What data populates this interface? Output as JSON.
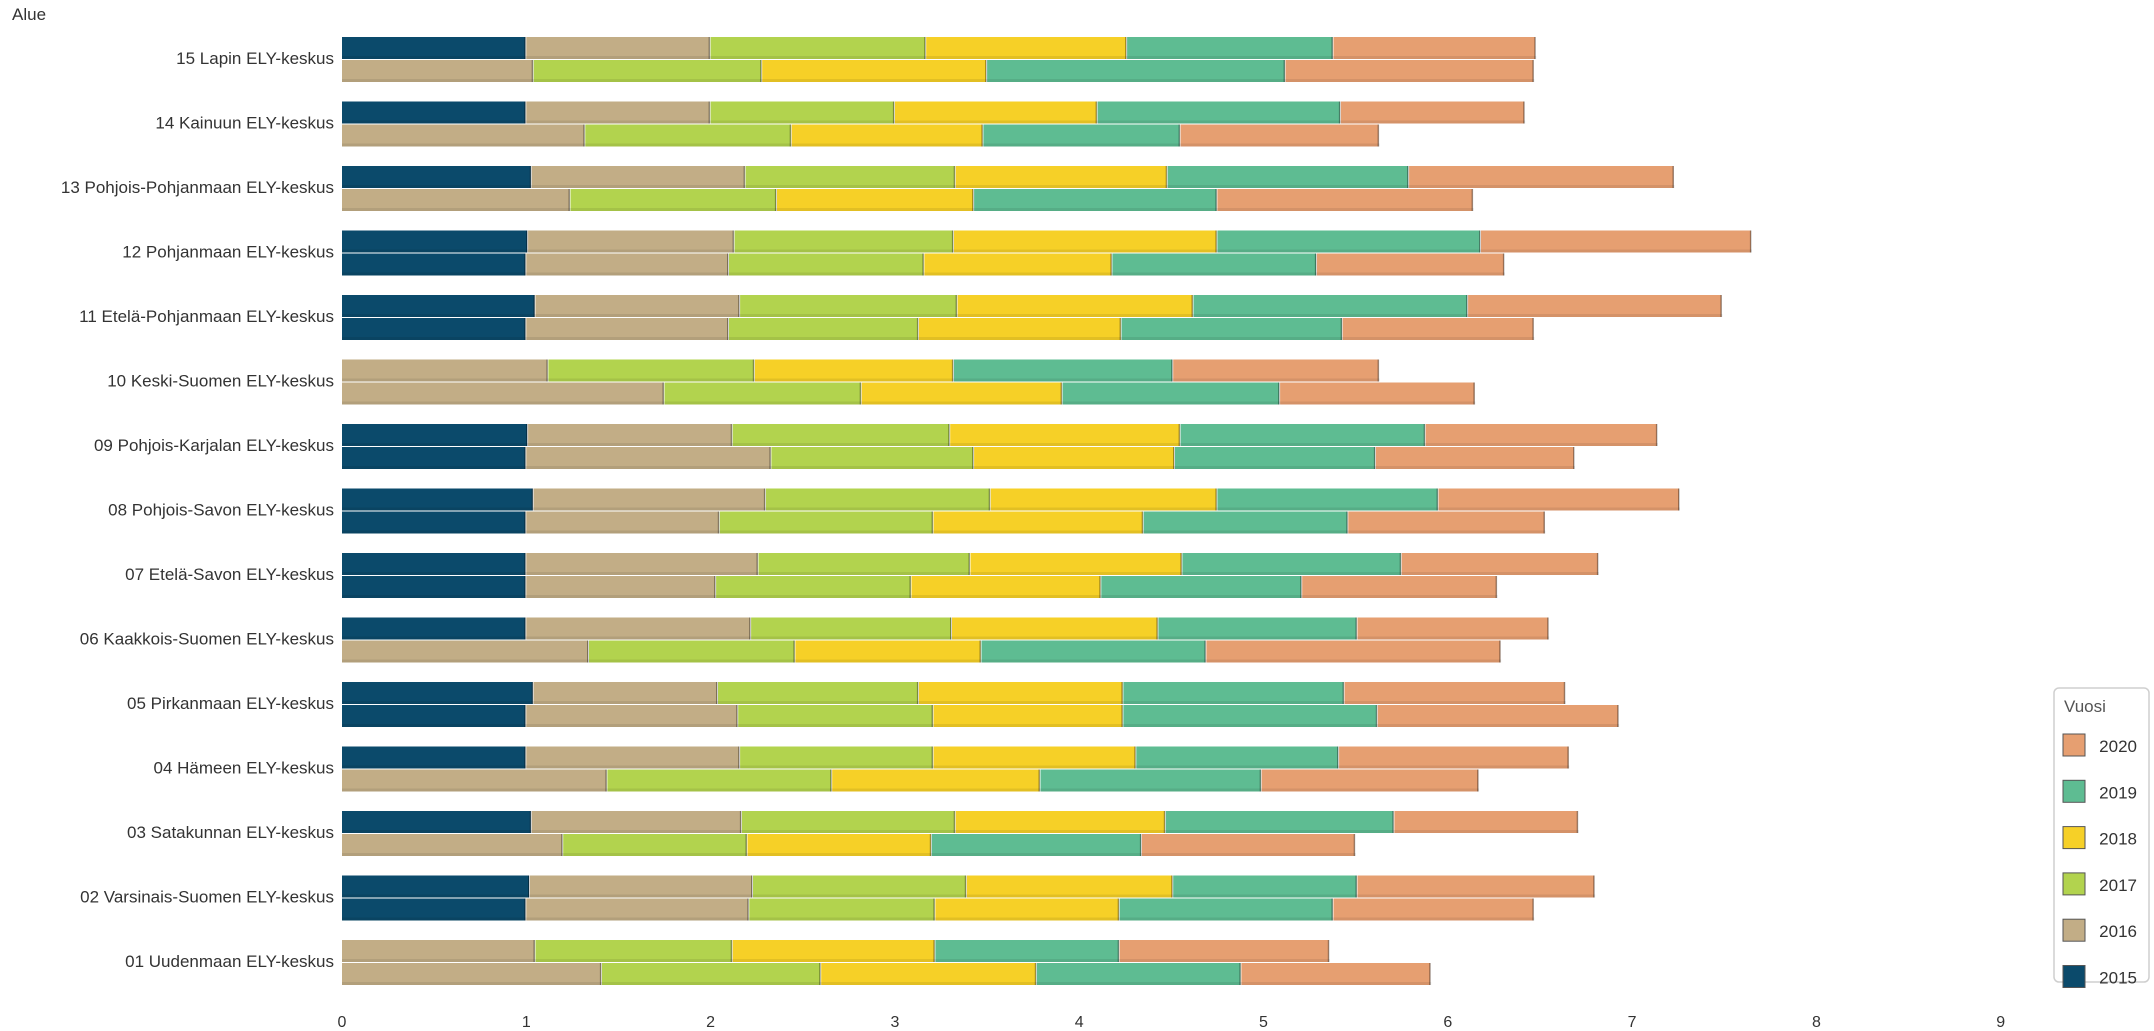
{
  "chart_data": {
    "type": "bar",
    "orientation": "horizontal",
    "stacked": true,
    "y_title": "Alue",
    "categories": [
      "15 Lapin ELY-keskus",
      "14 Kainuun ELY-keskus",
      "13 Pohjois-Pohjanmaan ELY-keskus",
      "12 Pohjanmaan ELY-keskus",
      "11 Etelä-Pohjanmaan ELY-keskus",
      "10 Keski-Suomen ELY-keskus",
      "09 Pohjois-Karjalan ELY-keskus",
      "08 Pohjois-Savon ELY-keskus",
      "07 Etelä-Savon ELY-keskus",
      "06 Kaakkois-Suomen ELY-keskus",
      "05 Pirkanmaan ELY-keskus",
      "04 Hämeen ELY-keskus",
      "03 Satakunnan ELY-keskus",
      "02 Varsinais-Suomen ELY-keskus",
      "01 Uudenmaan ELY-keskus"
    ],
    "bars": [
      [
        [
          1.0,
          1.0,
          1.17,
          1.09,
          1.12,
          1.1
        ],
        [
          0,
          1.04,
          1.24,
          1.22,
          1.62,
          1.35
        ]
      ],
      [
        [
          1.0,
          1.0,
          1.0,
          1.1,
          1.32,
          1.0
        ],
        [
          0,
          1.32,
          1.12,
          1.04,
          1.07,
          1.08
        ]
      ],
      [
        [
          1.03,
          1.16,
          1.14,
          1.15,
          1.31,
          1.44
        ],
        [
          0,
          1.24,
          1.12,
          1.07,
          1.32,
          1.39
        ]
      ],
      [
        [
          1.01,
          1.12,
          1.19,
          1.43,
          1.43,
          1.47
        ],
        [
          1.0,
          1.1,
          1.06,
          1.02,
          1.11,
          1.02
        ]
      ],
      [
        [
          1.05,
          1.11,
          1.18,
          1.28,
          1.49,
          1.38
        ],
        [
          1.0,
          1.1,
          1.03,
          1.1,
          1.2,
          1.04
        ]
      ],
      [
        [
          0,
          1.12,
          1.12,
          1.08,
          1.19,
          1.12
        ],
        [
          0,
          1.75,
          1.07,
          1.09,
          1.18,
          1.06
        ]
      ],
      [
        [
          1.01,
          1.11,
          1.18,
          1.25,
          1.33,
          1.26
        ],
        [
          1.0,
          1.33,
          1.1,
          1.09,
          1.09,
          1.08
        ]
      ],
      [
        [
          1.04,
          1.26,
          1.22,
          1.23,
          1.2,
          1.31
        ],
        [
          1.0,
          1.05,
          1.16,
          1.14,
          1.11,
          1.07
        ]
      ],
      [
        [
          1.0,
          1.26,
          1.15,
          1.15,
          1.19,
          1.07
        ],
        [
          1.0,
          1.03,
          1.06,
          1.03,
          1.09,
          1.06
        ]
      ],
      [
        [
          1.0,
          1.22,
          1.09,
          1.12,
          1.08,
          1.04
        ],
        [
          0,
          1.34,
          1.12,
          1.01,
          1.22,
          1.6
        ]
      ],
      [
        [
          1.04,
          1.0,
          1.09,
          1.11,
          1.2,
          1.2
        ],
        [
          1.0,
          1.15,
          1.06,
          1.03,
          1.38,
          1.31
        ]
      ],
      [
        [
          1.0,
          1.16,
          1.05,
          1.1,
          1.1,
          1.25
        ],
        [
          0,
          1.44,
          1.22,
          1.13,
          1.2,
          1.18
        ]
      ],
      [
        [
          1.03,
          1.14,
          1.16,
          1.14,
          1.24,
          1.0
        ],
        [
          0,
          1.2,
          1.0,
          1.0,
          1.14,
          1.16
        ]
      ],
      [
        [
          1.02,
          1.21,
          1.16,
          1.12,
          1.0,
          1.29
        ],
        [
          1.0,
          1.21,
          1.01,
          1.0,
          1.16,
          1.09
        ]
      ],
      [
        [
          0,
          1.05,
          1.07,
          1.1,
          1.0,
          1.14
        ],
        [
          0,
          1.41,
          1.19,
          1.17,
          1.11,
          1.03
        ]
      ]
    ],
    "series": [
      {
        "name": "2015",
        "color": "#0b4a6b"
      },
      {
        "name": "2016",
        "color": "#c2ad86"
      },
      {
        "name": "2017",
        "color": "#b2d34e"
      },
      {
        "name": "2018",
        "color": "#f6d027"
      },
      {
        "name": "2019",
        "color": "#5ebc92"
      },
      {
        "name": "2020",
        "color": "#e69f71"
      }
    ],
    "xlim": [
      0,
      9
    ],
    "x_ticks": [
      "0",
      "1",
      "2",
      "3",
      "4",
      "5",
      "6",
      "7",
      "8",
      "9"
    ],
    "legend": {
      "title": "Vuosi",
      "placement": "bottom-right",
      "entries": [
        {
          "label": "2020",
          "color": "#e69f71"
        },
        {
          "label": "2019",
          "color": "#5ebc92"
        },
        {
          "label": "2018",
          "color": "#f6d027"
        },
        {
          "label": "2017",
          "color": "#b2d34e"
        },
        {
          "label": "2016",
          "color": "#c2ad86"
        },
        {
          "label": "2015",
          "color": "#0b4a6b"
        }
      ]
    },
    "grid": false
  }
}
